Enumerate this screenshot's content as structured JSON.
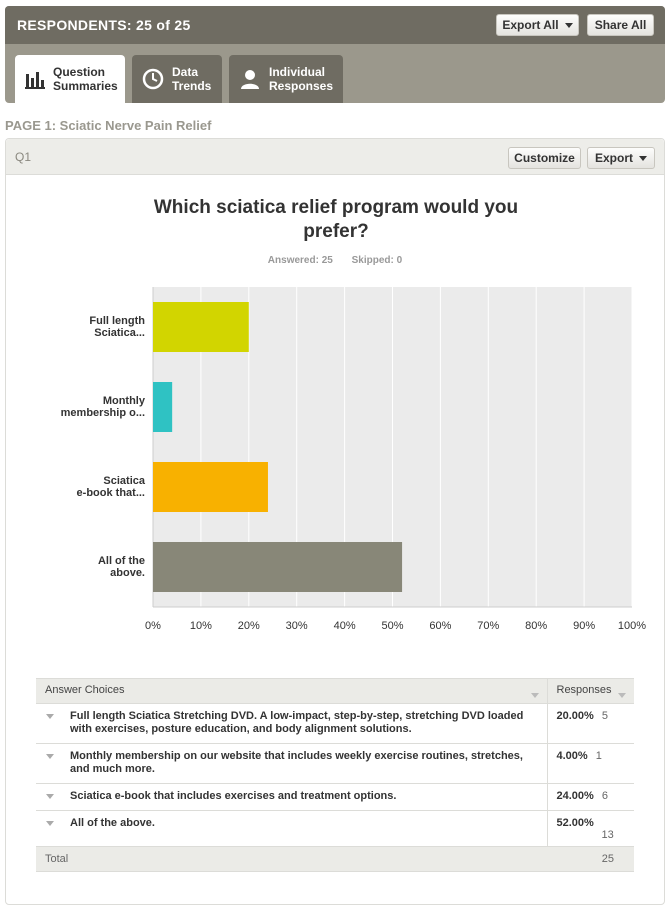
{
  "header": {
    "respondents": "RESPONDENTS: 25 of 25",
    "export_all": "Export All",
    "share_all": "Share All"
  },
  "tabs": [
    {
      "label": "Question\nSummaries",
      "icon": "bar-chart-icon",
      "active": true
    },
    {
      "label": "Data\nTrends",
      "icon": "clock-icon",
      "active": false
    },
    {
      "label": "Individual\nResponses",
      "icon": "person-icon",
      "active": false
    }
  ],
  "page_title": "PAGE 1: Sciatic Nerve Pain Relief",
  "question": {
    "number": "Q1",
    "customize": "Customize",
    "export": "Export",
    "text": "Which sciatica relief program would you prefer?",
    "answered": "Answered: 25",
    "skipped": "Skipped: 0"
  },
  "chart_data": {
    "type": "bar",
    "orientation": "horizontal",
    "categories": [
      "Full length\nSciatica...",
      "Monthly\nmembership o...",
      "Sciatica\ne-book that...",
      "All of the\nabove."
    ],
    "values": [
      20,
      4,
      24,
      52
    ],
    "colors": [
      "#d2d500",
      "#2fc2c3",
      "#f8b100",
      "#888778"
    ],
    "xlim": [
      0,
      100
    ],
    "xticks": [
      "0%",
      "10%",
      "20%",
      "30%",
      "40%",
      "50%",
      "60%",
      "70%",
      "80%",
      "90%",
      "100%"
    ],
    "grid": true,
    "title": "Which sciatica relief program would you prefer?"
  },
  "table": {
    "col_choices": "Answer Choices",
    "col_responses": "Responses",
    "rows": [
      {
        "choice": "Full length Sciatica Stretching DVD.  A low-impact, step-by-step, stretching DVD loaded with exercises, posture education, and body alignment solutions.",
        "pct": "20.00%",
        "count": "5"
      },
      {
        "choice": "Monthly membership on our website that includes weekly exercise routines, stretches, and much more.",
        "pct": "4.00%",
        "count": "1"
      },
      {
        "choice": "Sciatica e-book that includes exercises and treatment options.",
        "pct": "24.00%",
        "count": "6"
      },
      {
        "choice": "All of the above.",
        "pct": "52.00%",
        "count": "13"
      }
    ],
    "total_label": "Total",
    "total_value": "25"
  }
}
